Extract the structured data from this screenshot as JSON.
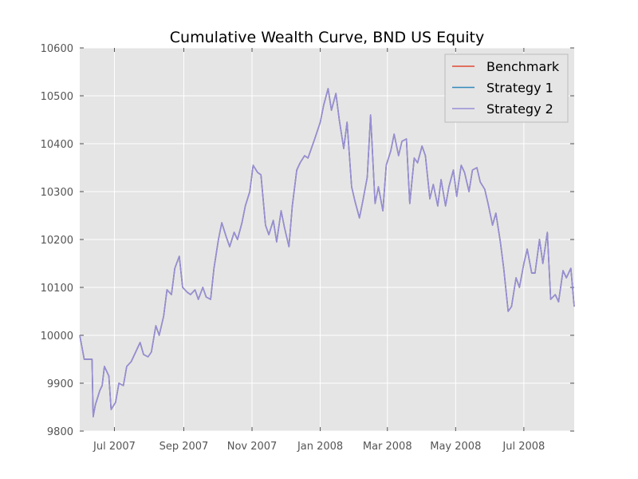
{
  "chart_data": {
    "type": "line",
    "title": "Cumulative Wealth Curve, BND US Equity",
    "xlabel": "",
    "ylabel": "",
    "x_range": [
      "2007-05-31",
      "2008-08-15"
    ],
    "ylim": [
      9800,
      10600
    ],
    "grid": true,
    "legend_position": "top-right",
    "x_ticks": [
      {
        "date": "2007-07-01",
        "label": "Jul 2007"
      },
      {
        "date": "2007-09-01",
        "label": "Sep 2007"
      },
      {
        "date": "2007-11-01",
        "label": "Nov 2007"
      },
      {
        "date": "2008-01-01",
        "label": "Jan 2008"
      },
      {
        "date": "2008-03-01",
        "label": "Mar 2008"
      },
      {
        "date": "2008-05-01",
        "label": "May 2008"
      },
      {
        "date": "2008-07-01",
        "label": "Jul 2008"
      }
    ],
    "y_ticks": [
      9800,
      9900,
      10000,
      10100,
      10200,
      10300,
      10400,
      10500,
      10600
    ],
    "x": [
      "2007-05-31",
      "2007-06-04",
      "2007-06-11",
      "2007-06-12",
      "2007-06-14",
      "2007-06-18",
      "2007-06-20",
      "2007-06-22",
      "2007-06-26",
      "2007-06-28",
      "2007-07-02",
      "2007-07-05",
      "2007-07-09",
      "2007-07-12",
      "2007-07-16",
      "2007-07-20",
      "2007-07-24",
      "2007-07-27",
      "2007-07-31",
      "2007-08-03",
      "2007-08-07",
      "2007-08-10",
      "2007-08-14",
      "2007-08-17",
      "2007-08-21",
      "2007-08-24",
      "2007-08-28",
      "2007-08-31",
      "2007-09-04",
      "2007-09-07",
      "2007-09-11",
      "2007-09-14",
      "2007-09-18",
      "2007-09-21",
      "2007-09-25",
      "2007-09-28",
      "2007-10-02",
      "2007-10-05",
      "2007-10-09",
      "2007-10-12",
      "2007-10-16",
      "2007-10-19",
      "2007-10-23",
      "2007-10-26",
      "2007-10-30",
      "2007-11-02",
      "2007-11-06",
      "2007-11-09",
      "2007-11-13",
      "2007-11-16",
      "2007-11-20",
      "2007-11-23",
      "2007-11-27",
      "2007-11-30",
      "2007-12-04",
      "2007-12-07",
      "2007-12-11",
      "2007-12-14",
      "2007-12-18",
      "2007-12-21",
      "2007-12-27",
      "2008-01-01",
      "2008-01-04",
      "2008-01-08",
      "2008-01-11",
      "2008-01-15",
      "2008-01-18",
      "2008-01-22",
      "2008-01-25",
      "2008-01-29",
      "2008-02-01",
      "2008-02-05",
      "2008-02-08",
      "2008-02-12",
      "2008-02-15",
      "2008-02-19",
      "2008-02-22",
      "2008-02-26",
      "2008-02-29",
      "2008-03-04",
      "2008-03-07",
      "2008-03-11",
      "2008-03-14",
      "2008-03-18",
      "2008-03-21",
      "2008-03-25",
      "2008-03-28",
      "2008-04-01",
      "2008-04-04",
      "2008-04-08",
      "2008-04-11",
      "2008-04-15",
      "2008-04-18",
      "2008-04-22",
      "2008-04-25",
      "2008-04-29",
      "2008-05-02",
      "2008-05-06",
      "2008-05-09",
      "2008-05-13",
      "2008-05-16",
      "2008-05-20",
      "2008-05-23",
      "2008-05-27",
      "2008-05-30",
      "2008-06-03",
      "2008-06-06",
      "2008-06-10",
      "2008-06-13",
      "2008-06-17",
      "2008-06-20",
      "2008-06-24",
      "2008-06-27",
      "2008-07-01",
      "2008-07-04",
      "2008-07-08",
      "2008-07-11",
      "2008-07-15",
      "2008-07-18",
      "2008-07-22",
      "2008-07-25",
      "2008-07-29",
      "2008-08-01",
      "2008-08-05",
      "2008-08-08",
      "2008-08-12",
      "2008-08-15"
    ],
    "series": [
      {
        "name": "Benchmark",
        "color": "#E24A33",
        "values": [
          10000,
          9950,
          9950,
          9830,
          9855,
          9885,
          9895,
          9935,
          9915,
          9845,
          9860,
          9900,
          9895,
          9935,
          9945,
          9965,
          9985,
          9960,
          9955,
          9965,
          10020,
          10000,
          10040,
          10095,
          10085,
          10140,
          10165,
          10100,
          10090,
          10085,
          10095,
          10075,
          10100,
          10080,
          10075,
          10140,
          10200,
          10235,
          10205,
          10185,
          10215,
          10200,
          10235,
          10270,
          10300,
          10355,
          10340,
          10335,
          10230,
          10210,
          10240,
          10195,
          10260,
          10225,
          10185,
          10270,
          10345,
          10360,
          10375,
          10370,
          10410,
          10445,
          10480,
          10515,
          10470,
          10505,
          10450,
          10390,
          10445,
          10310,
          10280,
          10245,
          10280,
          10330,
          10460,
          10275,
          10310,
          10260,
          10355,
          10385,
          10420,
          10375,
          10405,
          10410,
          10275,
          10370,
          10360,
          10395,
          10375,
          10285,
          10315,
          10270,
          10325,
          10270,
          10310,
          10345,
          10290,
          10355,
          10340,
          10300,
          10345,
          10350,
          10320,
          10305,
          10275,
          10230,
          10255,
          10195,
          10140,
          10050,
          10060,
          10120,
          10100,
          10150,
          10180,
          10130,
          10130,
          10200,
          10150,
          10215,
          10075,
          10085,
          10070,
          10135,
          10120,
          10140,
          10060
        ]
      },
      {
        "name": "Strategy 1",
        "color": "#348ABD",
        "values": [
          10000,
          9950,
          9950,
          9830,
          9855,
          9885,
          9895,
          9935,
          9915,
          9845,
          9860,
          9900,
          9895,
          9935,
          9945,
          9965,
          9985,
          9960,
          9955,
          9965,
          10020,
          10000,
          10040,
          10095,
          10085,
          10140,
          10165,
          10100,
          10090,
          10085,
          10095,
          10075,
          10100,
          10080,
          10075,
          10140,
          10200,
          10235,
          10205,
          10185,
          10215,
          10200,
          10235,
          10270,
          10300,
          10355,
          10340,
          10335,
          10230,
          10210,
          10240,
          10195,
          10260,
          10225,
          10185,
          10270,
          10345,
          10360,
          10375,
          10370,
          10410,
          10445,
          10480,
          10515,
          10470,
          10505,
          10450,
          10390,
          10445,
          10310,
          10280,
          10245,
          10280,
          10330,
          10460,
          10275,
          10310,
          10260,
          10355,
          10385,
          10420,
          10375,
          10405,
          10410,
          10275,
          10370,
          10360,
          10395,
          10375,
          10285,
          10315,
          10270,
          10325,
          10270,
          10310,
          10345,
          10290,
          10355,
          10340,
          10300,
          10345,
          10350,
          10320,
          10305,
          10275,
          10230,
          10255,
          10195,
          10140,
          10050,
          10060,
          10120,
          10100,
          10150,
          10180,
          10130,
          10130,
          10200,
          10150,
          10215,
          10075,
          10085,
          10070,
          10135,
          10120,
          10140,
          10060
        ]
      },
      {
        "name": "Strategy 2",
        "color": "#988ED5",
        "values": [
          10000,
          9950,
          9950,
          9830,
          9855,
          9885,
          9895,
          9935,
          9915,
          9845,
          9860,
          9900,
          9895,
          9935,
          9945,
          9965,
          9985,
          9960,
          9955,
          9965,
          10020,
          10000,
          10040,
          10095,
          10085,
          10140,
          10165,
          10100,
          10090,
          10085,
          10095,
          10075,
          10100,
          10080,
          10075,
          10140,
          10200,
          10235,
          10205,
          10185,
          10215,
          10200,
          10235,
          10270,
          10300,
          10355,
          10340,
          10335,
          10230,
          10210,
          10240,
          10195,
          10260,
          10225,
          10185,
          10270,
          10345,
          10360,
          10375,
          10370,
          10410,
          10445,
          10480,
          10515,
          10470,
          10505,
          10450,
          10390,
          10445,
          10310,
          10280,
          10245,
          10280,
          10330,
          10460,
          10275,
          10310,
          10260,
          10355,
          10385,
          10420,
          10375,
          10405,
          10410,
          10275,
          10370,
          10360,
          10395,
          10375,
          10285,
          10315,
          10270,
          10325,
          10270,
          10310,
          10345,
          10290,
          10355,
          10340,
          10300,
          10345,
          10350,
          10320,
          10305,
          10275,
          10230,
          10255,
          10195,
          10140,
          10050,
          10060,
          10120,
          10100,
          10150,
          10180,
          10130,
          10130,
          10200,
          10150,
          10215,
          10075,
          10085,
          10070,
          10135,
          10120,
          10140,
          10060
        ]
      }
    ]
  }
}
